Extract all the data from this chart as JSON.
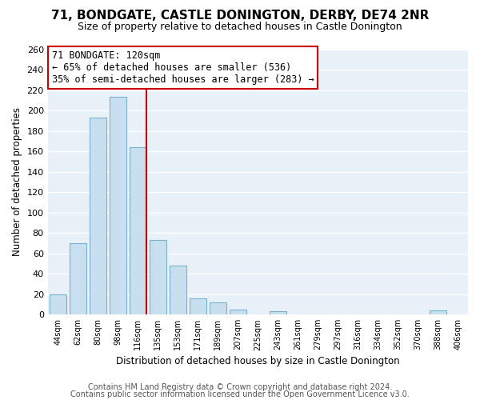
{
  "title": "71, BONDGATE, CASTLE DONINGTON, DERBY, DE74 2NR",
  "subtitle": "Size of property relative to detached houses in Castle Donington",
  "xlabel": "Distribution of detached houses by size in Castle Donington",
  "ylabel": "Number of detached properties",
  "bar_labels": [
    "44sqm",
    "62sqm",
    "80sqm",
    "98sqm",
    "116sqm",
    "135sqm",
    "153sqm",
    "171sqm",
    "189sqm",
    "207sqm",
    "225sqm",
    "243sqm",
    "261sqm",
    "279sqm",
    "297sqm",
    "316sqm",
    "334sqm",
    "352sqm",
    "370sqm",
    "388sqm",
    "406sqm"
  ],
  "bar_heights": [
    20,
    70,
    193,
    213,
    164,
    73,
    48,
    16,
    12,
    5,
    0,
    3,
    0,
    0,
    0,
    0,
    0,
    0,
    0,
    4,
    0
  ],
  "bar_color": "#c8dff0",
  "bar_edge_color": "#7ab0cc",
  "vline_index": 4,
  "vline_color": "#cc0000",
  "ylim": [
    0,
    260
  ],
  "yticks": [
    0,
    20,
    40,
    60,
    80,
    100,
    120,
    140,
    160,
    180,
    200,
    220,
    240,
    260
  ],
  "annotation_title": "71 BONDGATE: 120sqm",
  "annotation_line1": "← 65% of detached houses are smaller (536)",
  "annotation_line2": "35% of semi-detached houses are larger (283) →",
  "footer1": "Contains HM Land Registry data © Crown copyright and database right 2024.",
  "footer2": "Contains public sector information licensed under the Open Government Licence v3.0.",
  "fig_background_color": "#ffffff",
  "plot_background_color": "#e8f0f8",
  "grid_color": "#ffffff",
  "title_fontsize": 11,
  "subtitle_fontsize": 9,
  "annotation_box_facecolor": "#ffffff",
  "annotation_box_edgecolor": "#cc0000",
  "annotation_fontsize": 8.5,
  "footer_fontsize": 7,
  "footer_color": "#555555"
}
